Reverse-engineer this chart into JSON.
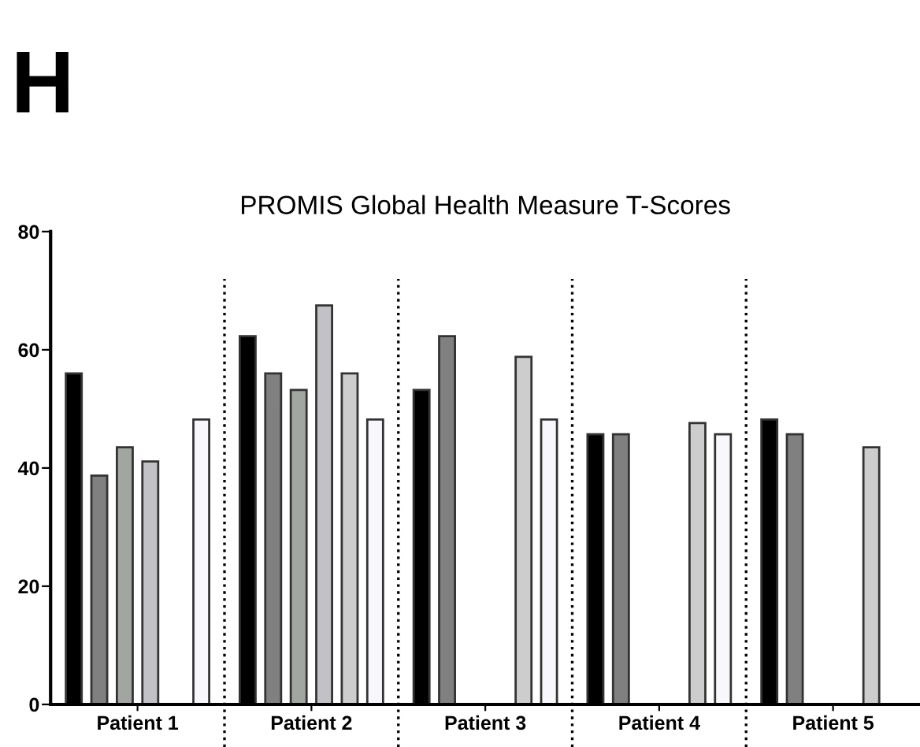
{
  "chart_data": {
    "type": "bar",
    "title": "PROMIS Global Health Measure T-Scores",
    "annotations": [
      "H"
    ],
    "categories": [
      "Patient 1",
      "Patient 2",
      "Patient 3",
      "Patient 4",
      "Patient 5"
    ],
    "series": [
      {
        "color": "#000000",
        "values": [
          56,
          62.3,
          53.2,
          45.7,
          48.2
        ]
      },
      {
        "color": "#808080",
        "values": [
          38.7,
          56,
          62.3,
          45.7,
          45.7
        ]
      },
      {
        "color": "#a2a6a0",
        "values": [
          43.5,
          53.2,
          null,
          null,
          null
        ]
      },
      {
        "color": "#c2c2c6",
        "values": [
          41.1,
          67.5,
          null,
          null,
          null
        ]
      },
      {
        "color": "#cdcdcd",
        "values": [
          null,
          56,
          58.8,
          47.6,
          43.5
        ]
      },
      {
        "color": "#f8f8fc",
        "values": [
          48.2,
          48.2,
          48.2,
          45.7,
          null
        ]
      }
    ],
    "ylim": [
      0,
      80
    ],
    "yticks": [
      0,
      20,
      40,
      60,
      80
    ],
    "grid": false,
    "legend": false
  }
}
